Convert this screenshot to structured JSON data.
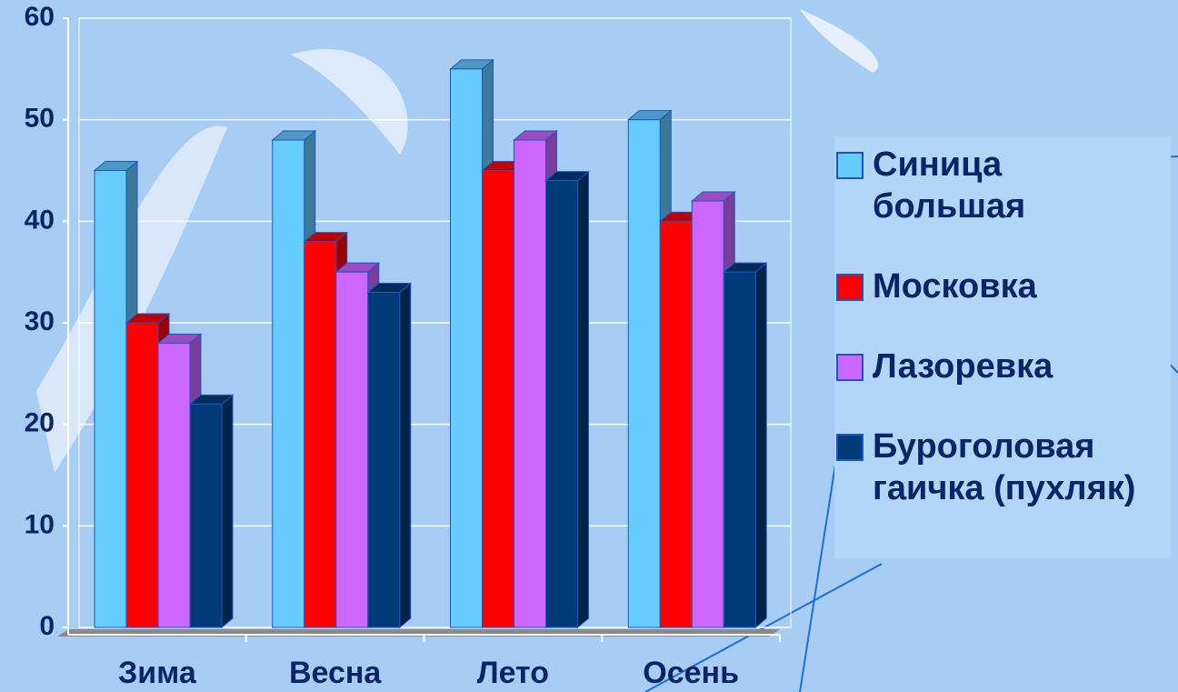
{
  "chart_data": {
    "type": "bar",
    "categories": [
      "Зима",
      "Весна",
      "Лето",
      "Осень"
    ],
    "series": [
      {
        "name": "Синица большая",
        "color": "#66ccff",
        "values": [
          45,
          48,
          55,
          50
        ]
      },
      {
        "name": "Московка",
        "color": "#ff0000",
        "values": [
          30,
          38,
          45,
          40
        ]
      },
      {
        "name": "Лазоревка",
        "color": "#cc66ff",
        "values": [
          28,
          35,
          48,
          42
        ]
      },
      {
        "name": "Буроголовая гаичка (пухляк)",
        "color": "#003a78",
        "values": [
          22,
          33,
          44,
          35
        ]
      }
    ],
    "ylim": [
      0,
      60
    ],
    "yticks": [
      0,
      10,
      20,
      30,
      40,
      50,
      60
    ],
    "grid": true,
    "legend": "right"
  }
}
